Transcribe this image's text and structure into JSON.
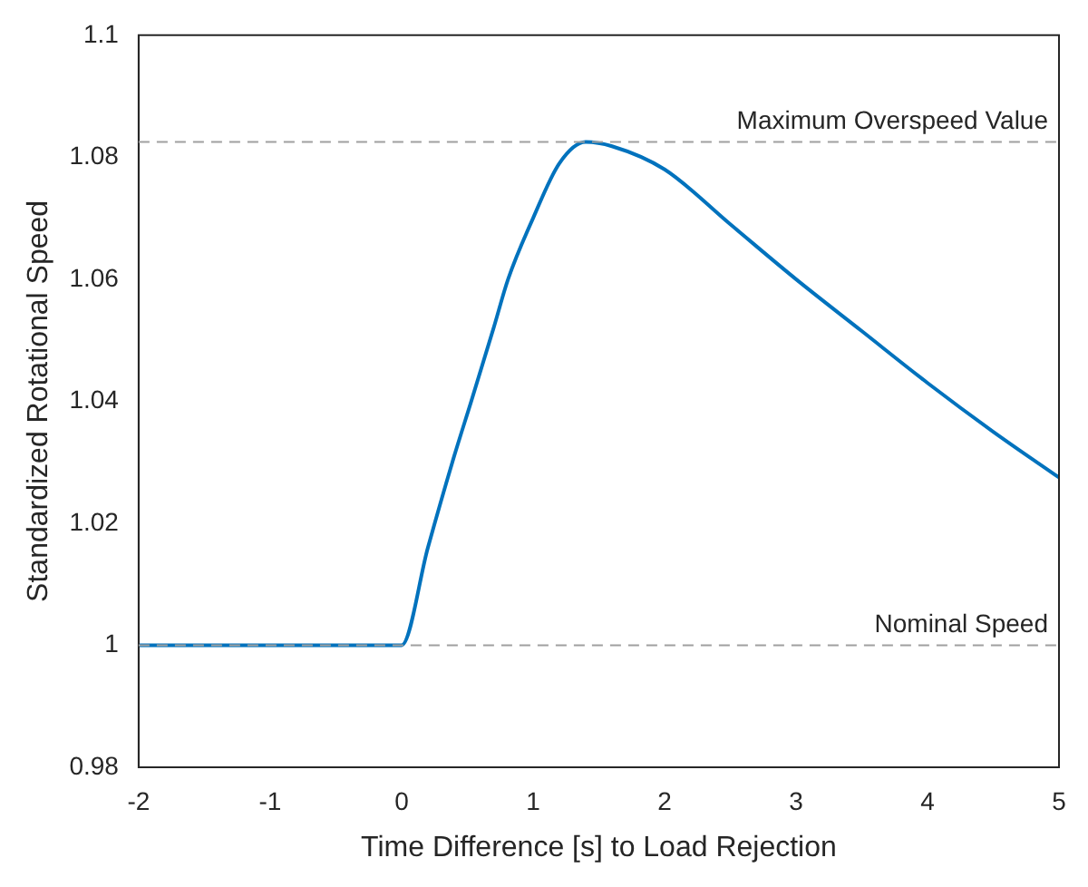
{
  "chart_data": {
    "type": "line",
    "xlabel": "Time Difference [s] to Load Rejection",
    "ylabel": "Standardized Rotational Speed",
    "x": [
      -2,
      0,
      0.2,
      0.4,
      0.53,
      0.7,
      0.81,
      1.0,
      1.2,
      1.4,
      1.6,
      2,
      2.5,
      3,
      3.5,
      4,
      4.5,
      5
    ],
    "series": [
      {
        "color": "#0072bd",
        "values": [
          1,
          1,
          1.016,
          1.031,
          1.04,
          1.052,
          1.06,
          1.07,
          1.079,
          1.0825,
          1.0818,
          1.078,
          1.069,
          1.06,
          1.0515,
          1.043,
          1.035,
          1.0275
        ]
      }
    ],
    "xlim": [
      -2,
      5
    ],
    "xticks": [
      -2,
      -1,
      0,
      1,
      2,
      3,
      4,
      5
    ],
    "ylim": [
      0.98,
      1.1
    ],
    "yticks": [
      0.98,
      1,
      1.02,
      1.04,
      1.06,
      1.08,
      1.1
    ],
    "ref_lines": [
      {
        "axis": "y",
        "value": 1.0825,
        "label": "Maximum Overspeed Value",
        "color": "#a0a0a0",
        "line_style": "dashed"
      },
      {
        "axis": "y",
        "value": 1,
        "label": "Nominal Speed",
        "color": "#a0a0a0",
        "line_style": "dashed"
      }
    ],
    "grid": false,
    "legend": false,
    "marker": "none",
    "line_style": "solid"
  }
}
